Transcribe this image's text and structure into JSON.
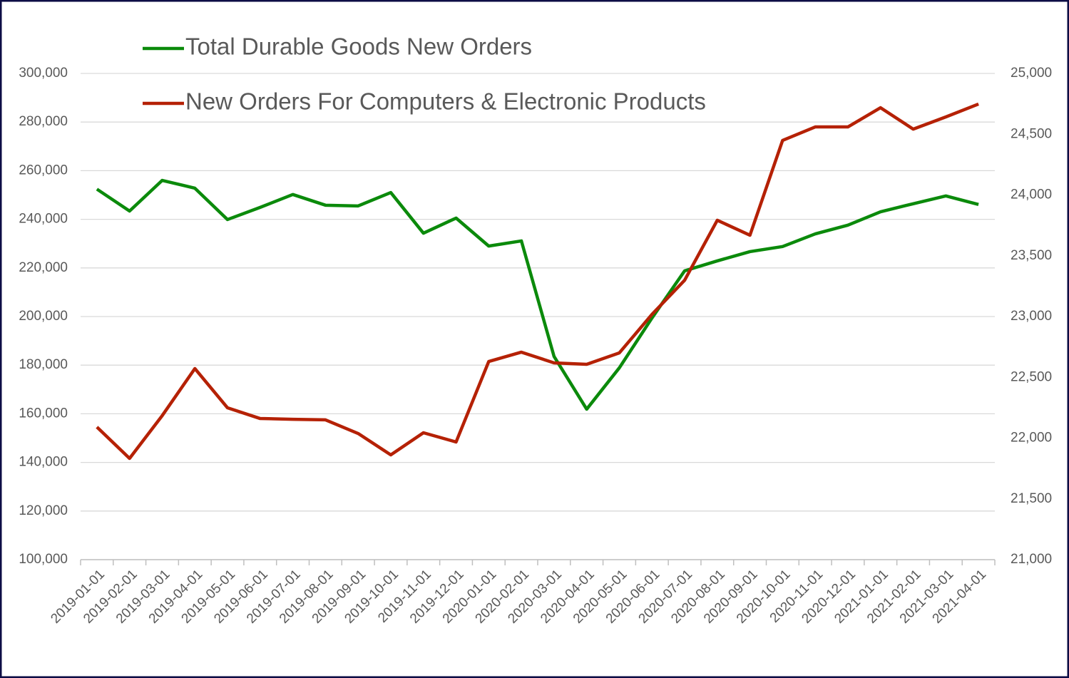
{
  "chart_data": {
    "type": "line",
    "categories": [
      "2019-01-01",
      "2019-02-01",
      "2019-03-01",
      "2019-04-01",
      "2019-05-01",
      "2019-06-01",
      "2019-07-01",
      "2019-08-01",
      "2019-09-01",
      "2019-10-01",
      "2019-11-01",
      "2019-12-01",
      "2020-01-01",
      "2020-02-01",
      "2020-03-01",
      "2020-04-01",
      "2020-05-01",
      "2020-06-01",
      "2020-07-01",
      "2020-08-01",
      "2020-09-01",
      "2020-10-01",
      "2020-11-01",
      "2020-12-01",
      "2021-01-01",
      "2021-02-01",
      "2021-03-01",
      "2021-04-01"
    ],
    "series": [
      {
        "name": "Total Durable Goods New Orders",
        "color": "#0b8a0b",
        "axis": "y",
        "values": [
          252400,
          243400,
          256000,
          252800,
          239900,
          244900,
          250200,
          245800,
          245500,
          251000,
          234300,
          240500,
          229000,
          231100,
          183600,
          161900,
          178900,
          199400,
          218800,
          222900,
          226700,
          228800,
          234000,
          237600,
          243100,
          246400,
          249600,
          246100
        ]
      },
      {
        "name": "New Orders For Computers & Electronic Products",
        "color": "#b52105",
        "axis": "y2",
        "values": [
          22091,
          21833,
          22185,
          22572,
          22249,
          22161,
          22155,
          22150,
          22038,
          21862,
          22044,
          21968,
          22630,
          22707,
          22619,
          22607,
          22701,
          23018,
          23299,
          23792,
          23669,
          24449,
          24560,
          24560,
          24718,
          24542,
          24642,
          24748
        ]
      }
    ],
    "ylim": [
      100000,
      300000
    ],
    "yticks": [
      {
        "value": 100000,
        "label": "100,000"
      },
      {
        "value": 120000,
        "label": "120,000"
      },
      {
        "value": 140000,
        "label": "140,000"
      },
      {
        "value": 160000,
        "label": "160,000"
      },
      {
        "value": 180000,
        "label": "180,000"
      },
      {
        "value": 200000,
        "label": "200,000"
      },
      {
        "value": 220000,
        "label": "220,000"
      },
      {
        "value": 240000,
        "label": "240,000"
      },
      {
        "value": 260000,
        "label": "260,000"
      },
      {
        "value": 280000,
        "label": "280,000"
      },
      {
        "value": 300000,
        "label": "300,000"
      }
    ],
    "y2lim": [
      21000,
      25000
    ],
    "y2ticks": [
      {
        "value": 21000,
        "label": "21,000"
      },
      {
        "value": 21500,
        "label": "21,500"
      },
      {
        "value": 22000,
        "label": "22,000"
      },
      {
        "value": 22500,
        "label": "22,500"
      },
      {
        "value": 23000,
        "label": "23,000"
      },
      {
        "value": 23500,
        "label": "23,500"
      },
      {
        "value": 24000,
        "label": "24,000"
      },
      {
        "value": 24500,
        "label": "24,500"
      },
      {
        "value": 25000,
        "label": "25,000"
      }
    ],
    "grid": true,
    "legend": "top-left"
  }
}
